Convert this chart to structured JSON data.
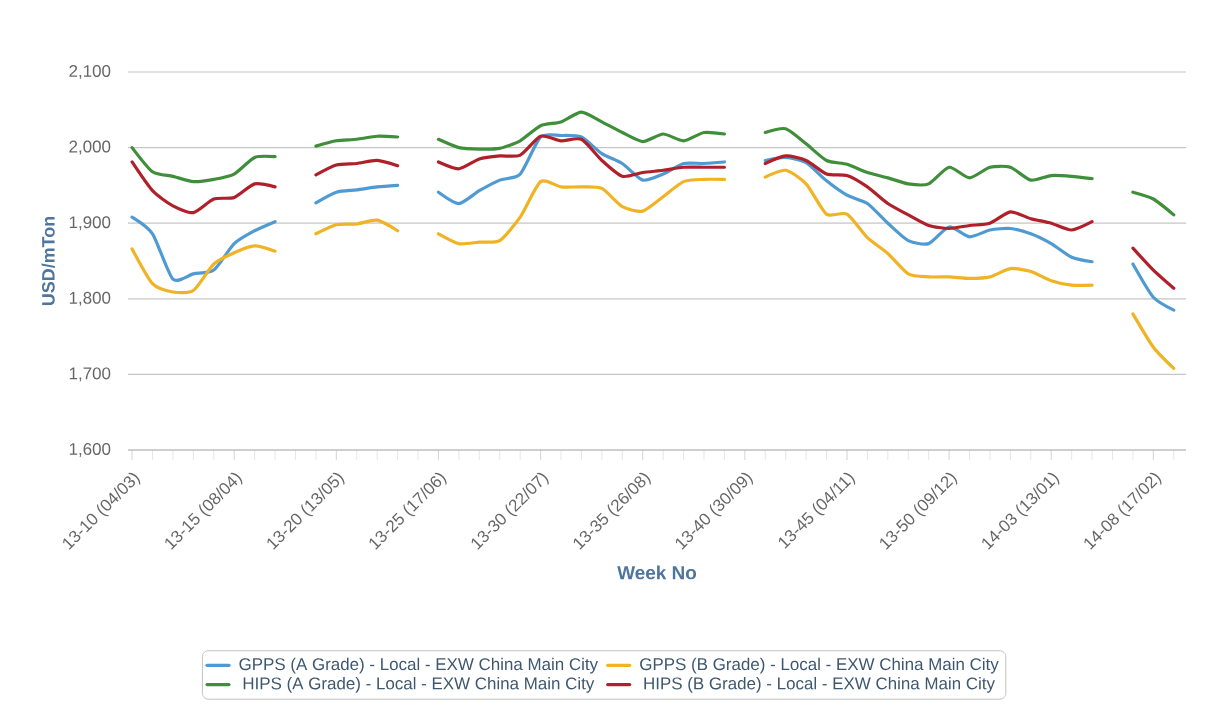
{
  "chart_data": {
    "type": "line",
    "xlabel": "Week No",
    "ylabel": "USD/mTon",
    "categories": [
      "13-10 (04/03)",
      null,
      null,
      null,
      null,
      "13-15 (08/04)",
      null,
      null,
      null,
      null,
      "13-20 (13/05)",
      null,
      null,
      null,
      null,
      "13-25 (17/06)",
      null,
      null,
      null,
      null,
      "13-30 (22/07)",
      null,
      null,
      null,
      null,
      "13-35 (26/08)",
      null,
      null,
      null,
      null,
      "13-40 (30/09)",
      null,
      null,
      null,
      null,
      "13-45 (04/11)",
      null,
      null,
      null,
      null,
      "13-50 (09/12)",
      null,
      null,
      null,
      null,
      "14-03 (13/01)",
      null,
      null,
      null,
      null,
      "14-08 (17/02)",
      null
    ],
    "series": [
      {
        "name": "GPPS (A Grade) - Local - EXW China Main City",
        "color": "#4f9ad2",
        "values": [
          1908,
          1886,
          1826,
          1833,
          1838,
          1873,
          1890,
          1902,
          null,
          1927,
          1941,
          1944,
          1948,
          1950,
          null,
          1941,
          1926,
          1943,
          1957,
          1965,
          2014,
          2016,
          2014,
          1992,
          1979,
          1957,
          1965,
          1979,
          1979,
          1981,
          null,
          1983,
          1987,
          1980,
          1956,
          1937,
          1926,
          1900,
          1877,
          1873,
          1895,
          1882,
          1891,
          1893,
          1886,
          1873,
          1855,
          1849,
          null,
          1846,
          1802,
          1785
        ]
      },
      {
        "name": "GPPS (B Grade) - Local - EXW China Main City",
        "color": "#f0b323",
        "values": [
          1866,
          1820,
          1809,
          1811,
          1846,
          1861,
          1870,
          1863,
          null,
          1886,
          1898,
          1899,
          1904,
          1890,
          null,
          1886,
          1873,
          1875,
          1877,
          1908,
          1955,
          1948,
          1948,
          1946,
          1922,
          1916,
          1935,
          1955,
          1958,
          1958,
          null,
          1961,
          1970,
          1952,
          1912,
          1912,
          1881,
          1860,
          1833,
          1829,
          1829,
          1827,
          1829,
          1840,
          1836,
          1824,
          1818,
          1818,
          null,
          1780,
          1736,
          1708
        ]
      },
      {
        "name": "HIPS (A Grade) - Local - EXW China Main City",
        "color": "#3f8f3a",
        "values": [
          2000,
          1968,
          1962,
          1955,
          1958,
          1965,
          1987,
          1988,
          null,
          2002,
          2009,
          2011,
          2015,
          2014,
          null,
          2011,
          2000,
          1998,
          1999,
          2009,
          2029,
          2034,
          2047,
          2034,
          2020,
          2008,
          2018,
          2009,
          2020,
          2018,
          null,
          2020,
          2025,
          2005,
          1983,
          1978,
          1967,
          1960,
          1952,
          1952,
          1974,
          1960,
          1974,
          1974,
          1957,
          1963,
          1962,
          1959,
          null,
          1941,
          1932,
          1911
        ]
      },
      {
        "name": "HIPS (B Grade) - Local - EXW China Main City",
        "color": "#b0202a",
        "values": [
          1981,
          1943,
          1923,
          1914,
          1932,
          1934,
          1952,
          1948,
          null,
          1964,
          1977,
          1979,
          1983,
          1976,
          null,
          1981,
          1972,
          1985,
          1989,
          1990,
          2015,
          2009,
          2011,
          1983,
          1962,
          1967,
          1970,
          1974,
          1974,
          1974,
          null,
          1979,
          1989,
          1983,
          1965,
          1963,
          1948,
          1926,
          1911,
          1897,
          1893,
          1897,
          1900,
          1915,
          1906,
          1900,
          1891,
          1902,
          null,
          1867,
          1838,
          1814
        ]
      }
    ],
    "ylim": [
      1600,
      2100
    ],
    "yticks": [
      {
        "value": 1600,
        "label": "1,600"
      },
      {
        "value": 1700,
        "label": "1,700"
      },
      {
        "value": 1800,
        "label": "1,800"
      },
      {
        "value": 1900,
        "label": "1,900"
      },
      {
        "value": 2000,
        "label": "2,000"
      },
      {
        "value": 2100,
        "label": "2,100"
      }
    ],
    "grid": "y",
    "legend": "bottom"
  }
}
